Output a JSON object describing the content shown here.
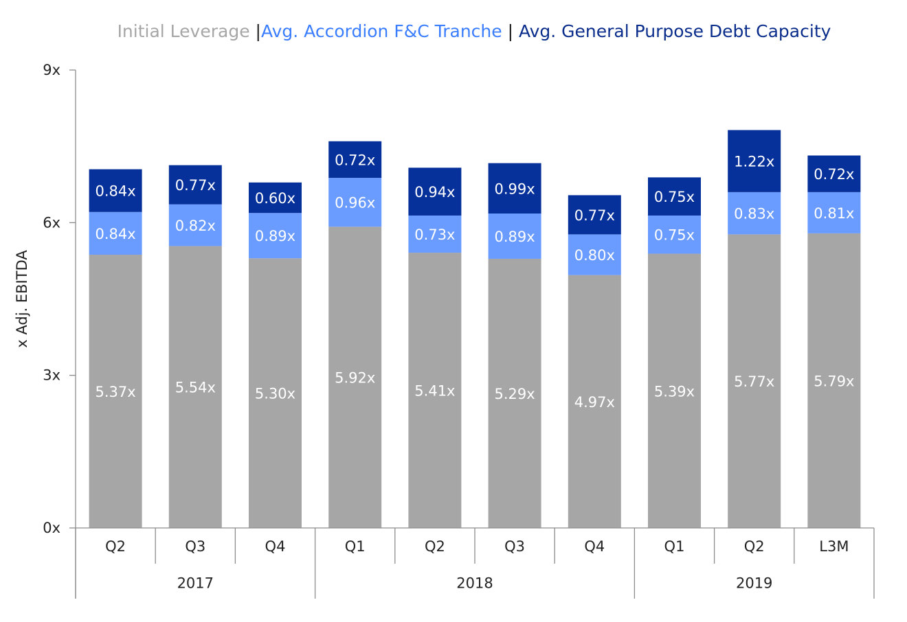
{
  "chart_data": {
    "type": "bar",
    "stacked": true,
    "title_parts": [
      {
        "text": "Initial Leverage ",
        "color": "#A6A6A6"
      },
      {
        "text": "|",
        "color": "#1a1a1a"
      },
      {
        "text": "Avg. Accordion F&C Tranche",
        "color": "#3A7DFF"
      },
      {
        "text": " | ",
        "color": "#1a1a1a"
      },
      {
        "text": "Avg. General Purpose Debt Capacity",
        "color": "#0A2D8C"
      }
    ],
    "ylabel": "x Adj. EBITDA",
    "ylim": [
      0,
      9
    ],
    "yticks": [
      0,
      3,
      6,
      9
    ],
    "ytick_labels": [
      "0x",
      "3x",
      "6x",
      "9x"
    ],
    "categories": [
      "Q2",
      "Q3",
      "Q4",
      "Q1",
      "Q2",
      "Q3",
      "Q4",
      "Q1",
      "Q2",
      "L3M"
    ],
    "groups": [
      {
        "label": "2017",
        "start": 0,
        "end": 2
      },
      {
        "label": "2018",
        "start": 3,
        "end": 6
      },
      {
        "label": "2019",
        "start": 7,
        "end": 9
      }
    ],
    "series": [
      {
        "name": "Initial Leverage",
        "color": "#A6A6A6",
        "values": [
          5.37,
          5.54,
          5.3,
          5.92,
          5.41,
          5.29,
          4.97,
          5.39,
          5.77,
          5.79
        ],
        "labels": [
          "5.37x",
          "5.54x",
          "5.30x",
          "5.92x",
          "5.41x",
          "5.29x",
          "4.97x",
          "5.39x",
          "5.77x",
          "5.79x"
        ]
      },
      {
        "name": "Avg. Accordion F&C Tranche",
        "color": "#6A9BFF",
        "values": [
          0.84,
          0.82,
          0.89,
          0.96,
          0.73,
          0.89,
          0.8,
          0.75,
          0.83,
          0.81
        ],
        "labels": [
          "0.84x",
          "0.82x",
          "0.89x",
          "0.96x",
          "0.73x",
          "0.89x",
          "0.80x",
          "0.75x",
          "0.83x",
          "0.81x"
        ]
      },
      {
        "name": "Avg. General Purpose Debt Capacity",
        "color": "#06309A",
        "values": [
          0.84,
          0.77,
          0.6,
          0.72,
          0.94,
          0.99,
          0.77,
          0.75,
          1.22,
          0.72
        ],
        "labels": [
          "0.84x",
          "0.77x",
          "0.60x",
          "0.72x",
          "0.94x",
          "0.99x",
          "0.77x",
          "0.75x",
          "1.22x",
          "0.72x"
        ]
      }
    ],
    "legend_placement": "top",
    "grid": false
  }
}
